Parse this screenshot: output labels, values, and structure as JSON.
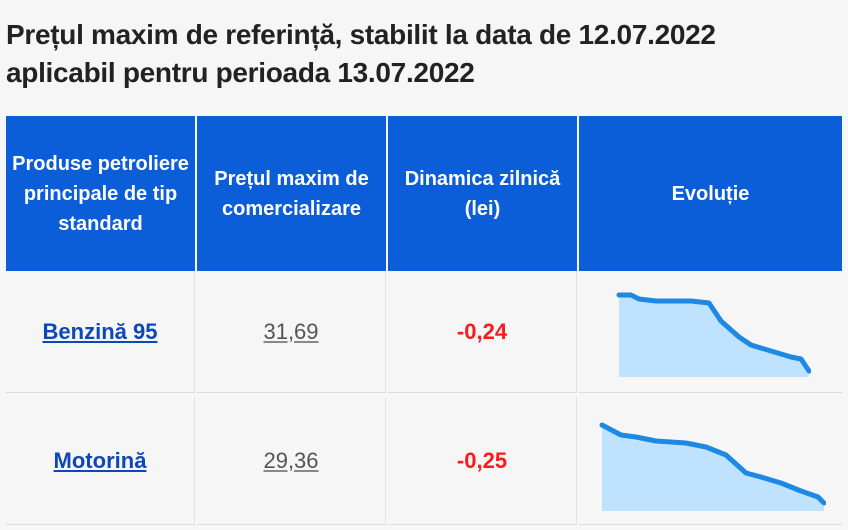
{
  "page": {
    "title_line1": "Prețul maxim de referință, stabilit la data de 12.07.2022",
    "title_line2": "aplicabil pentru perioada 13.07.2022"
  },
  "table": {
    "headers": [
      "Produse petroliere principale de tip standard",
      "Prețul maxim de comercializare",
      "Dinamica zilnică (lei)",
      "Evoluție"
    ],
    "rows": [
      {
        "product": "Benzină 95",
        "price": "31,69",
        "delta": "-0,24"
      },
      {
        "product": "Motorină",
        "price": "29,36",
        "delta": "-0,25"
      }
    ]
  },
  "colors": {
    "header_bg": "#0b5ed7",
    "link": "#0d47b8",
    "negative": "#ff1a1a",
    "spark_line": "#1e88e5",
    "spark_fill": "#bfe3ff"
  }
}
